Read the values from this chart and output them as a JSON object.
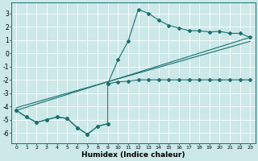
{
  "xlabel": "Humidex (Indice chaleur)",
  "background_color": "#cce8e8",
  "grid_color": "#add8d8",
  "line_color": "#1a7070",
  "xlim": [
    -0.5,
    23.5
  ],
  "ylim": [
    -6.8,
    3.8
  ],
  "xticks": [
    0,
    1,
    2,
    3,
    4,
    5,
    6,
    7,
    8,
    9,
    10,
    11,
    12,
    13,
    14,
    15,
    16,
    17,
    18,
    19,
    20,
    21,
    22,
    23
  ],
  "yticks": [
    -6,
    -5,
    -4,
    -3,
    -2,
    -1,
    0,
    1,
    2,
    3
  ],
  "zigzag_x": [
    0,
    1,
    2,
    3,
    4,
    5,
    6,
    7,
    8,
    9
  ],
  "zigzag_y": [
    -4.3,
    -4.8,
    -5.2,
    -5.0,
    -4.8,
    -4.9,
    -5.6,
    -6.1,
    -5.5,
    -5.3
  ],
  "peak_x": [
    9,
    10,
    11,
    12,
    13,
    14,
    15,
    16,
    17,
    18,
    19,
    20,
    21,
    22,
    23
  ],
  "peak_y": [
    -2.3,
    -0.5,
    0.9,
    3.3,
    3.0,
    2.5,
    2.1,
    1.9,
    1.7,
    1.7,
    1.6,
    1.65,
    1.5,
    1.5,
    1.2
  ],
  "trend1_x": [
    0,
    23
  ],
  "trend1_y": [
    -4.3,
    1.2
  ],
  "trend2_x": [
    0,
    23
  ],
  "trend2_y": [
    -4.1,
    0.9
  ],
  "flat_x": [
    9,
    10,
    11,
    12,
    13,
    14,
    15,
    16,
    17,
    18,
    19,
    20,
    21,
    22,
    23
  ],
  "flat_y": [
    -2.3,
    -2.15,
    -2.1,
    -2.0,
    -2.0,
    -2.0,
    -2.0,
    -2.0,
    -2.0,
    -2.0,
    -2.0,
    -2.0,
    -2.0,
    -2.0,
    -2.0
  ]
}
